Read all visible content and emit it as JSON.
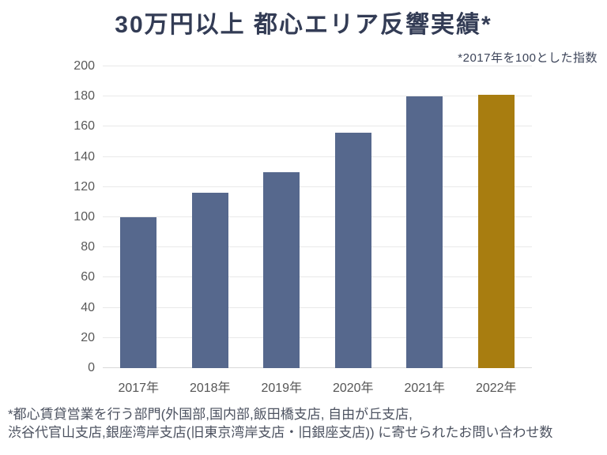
{
  "chart_data": {
    "type": "bar",
    "title": "30万円以上 都心エリア反響実績*",
    "note": "*2017年を100とした指数",
    "categories": [
      "2017年",
      "2018年",
      "2019年",
      "2020年",
      "2021年",
      "2022年"
    ],
    "values": [
      100,
      116,
      130,
      156,
      180,
      181
    ],
    "xlabel": "",
    "ylabel": "",
    "ylim": [
      0,
      200
    ],
    "ytick_step": 20,
    "grid": true,
    "legend_position": "none",
    "bar_color": "#56688D",
    "highlight_index": 5,
    "highlight_color": "#A87D10"
  },
  "footnote": {
    "lines": [
      "*都心賃貸営業を行う部門(外国部,国内部,飯田橋支店, 自由が丘支店,",
      "渋谷代官山支店,銀座湾岸支店(旧東京湾岸支店・旧銀座支店)) に寄せられたお問い合わせ数"
    ]
  },
  "colors": {
    "title": "#333C55",
    "subtitle": "#3C4459",
    "tick_label": "#595959",
    "grid": "#E9E9E9",
    "baseline": "#D9D9D9",
    "footnote": "#4C5260",
    "background": "#FFFFFF"
  }
}
